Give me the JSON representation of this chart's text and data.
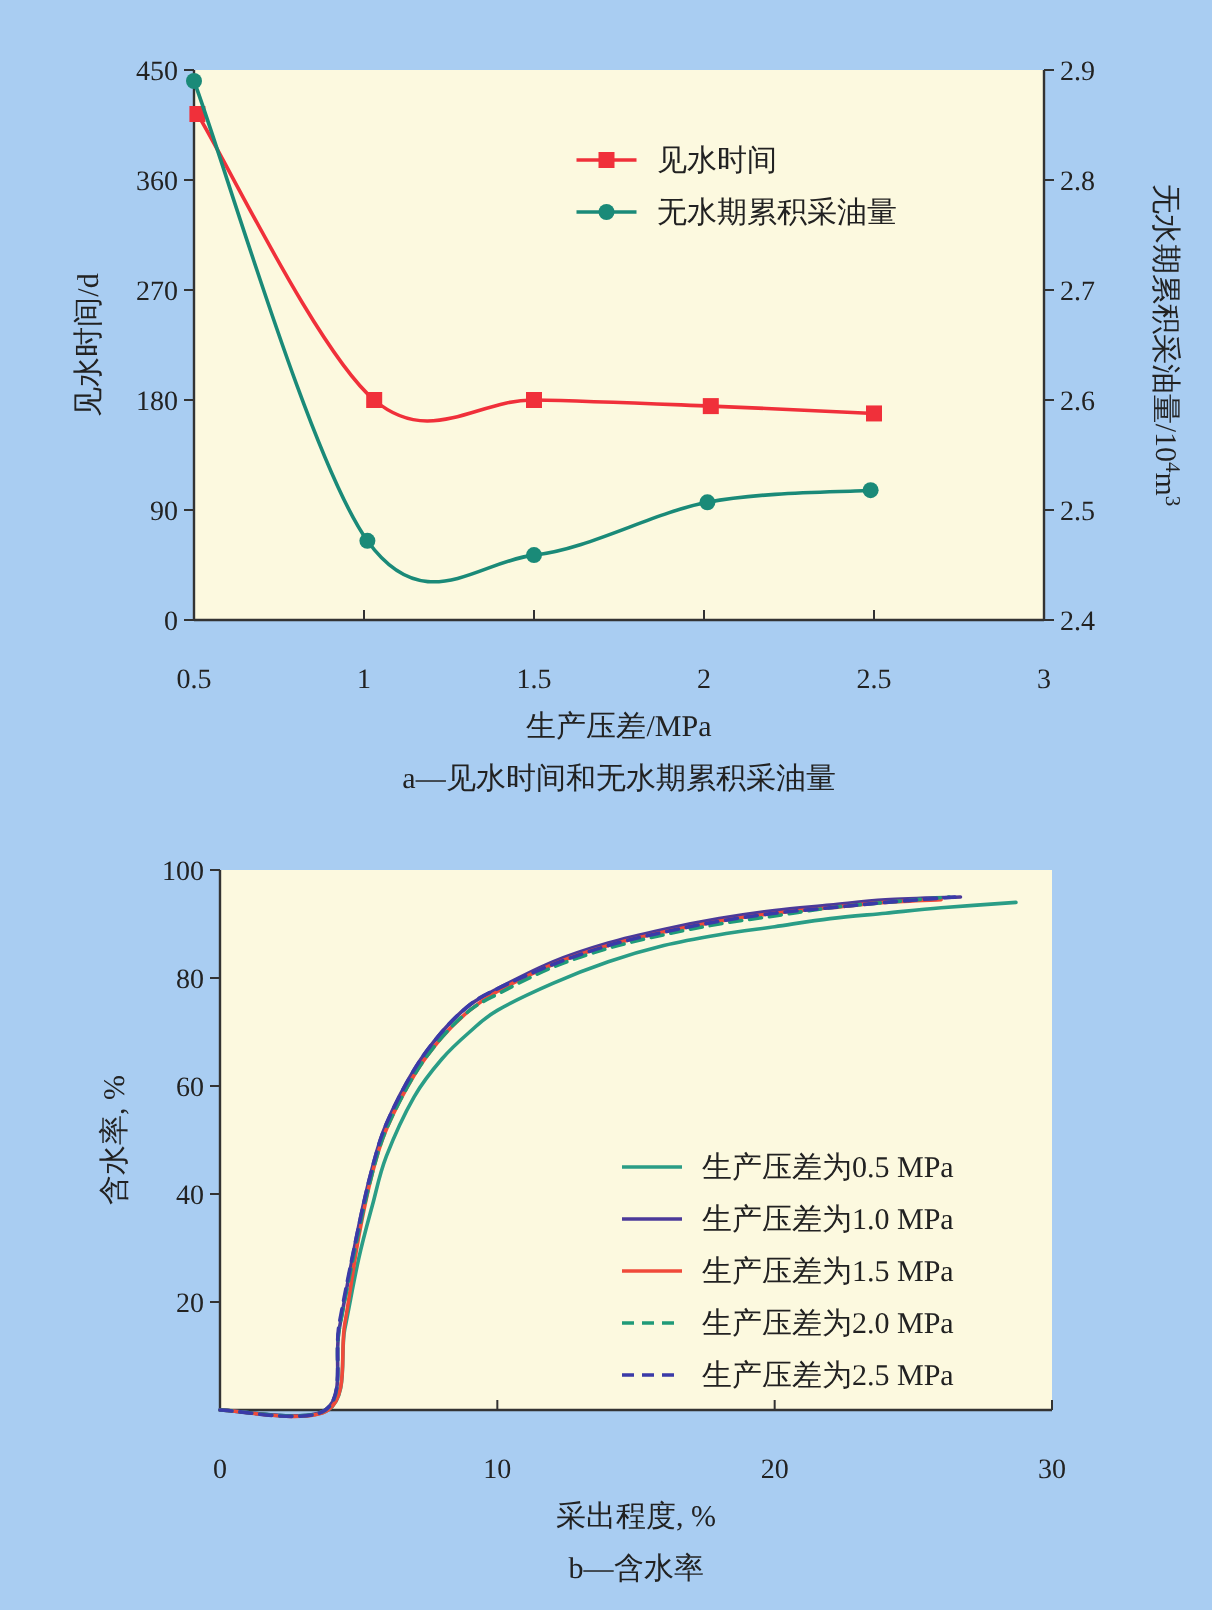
{
  "chart_data": [
    {
      "type": "line",
      "title": "a—见水时间和无水期累积采油量",
      "xlabel": "生产压差/MPa",
      "ylabel": "见水时间/d",
      "y2label": "无水期累积采油量/10$^{4}$m$^{3}$",
      "xlim": [
        0.5,
        3
      ],
      "xticks": [
        0.5,
        1,
        1.5,
        2,
        2.5,
        3
      ],
      "ylim": [
        0,
        450
      ],
      "yticks": [
        0,
        90,
        180,
        270,
        360,
        450
      ],
      "y2lim": [
        2.4,
        2.9
      ],
      "y2ticks": [
        2.4,
        2.5,
        2.6,
        2.7,
        2.8,
        2.9
      ],
      "grid": false,
      "legend": "top right",
      "series": [
        {
          "name": "见水时间",
          "color": "#f0303a",
          "marker": "square",
          "x": [
            0.51,
            1.03,
            1.5,
            2.02,
            2.5
          ],
          "values": [
            414,
            180,
            180,
            175,
            169
          ]
        },
        {
          "name": "无水期累积采油量",
          "color": "#1a8a78",
          "marker": "circle",
          "axis": "y2",
          "x": [
            0.5,
            1.01,
            1.5,
            2.01,
            2.49
          ],
          "values": [
            2.89,
            2.472,
            2.459,
            2.507,
            2.518
          ]
        }
      ]
    },
    {
      "type": "line",
      "title": "b—含水率",
      "xlabel": "采出程度, %",
      "ylabel": "含水率, %",
      "xlim": [
        0,
        30
      ],
      "xticks": [
        0,
        10,
        20,
        30
      ],
      "ylim": [
        0,
        100
      ],
      "yticks": [
        20,
        40,
        60,
        80,
        100
      ],
      "grid": false,
      "legend": "right",
      "series": [
        {
          "name": "生产压差为0.5 MPa",
          "color": "#2a9d86",
          "line_style": "solid",
          "x": [
            0,
            3.9,
            4.5,
            5,
            5.5,
            6,
            7,
            8,
            9,
            10,
            12,
            14,
            16,
            18,
            20,
            22,
            24,
            26,
            28.7
          ],
          "values": [
            0,
            0,
            15,
            28,
            38,
            47,
            58,
            65,
            70,
            74,
            79,
            83,
            86,
            88,
            89.5,
            91,
            92,
            93,
            94
          ]
        },
        {
          "name": "生产压差为1.0 MPa",
          "color": "#4b3a9a",
          "line_style": "solid",
          "x": [
            0,
            3.8,
            4.3,
            5,
            5.5,
            6,
            7,
            8,
            9,
            10,
            12,
            14,
            16,
            18,
            20,
            22,
            24,
            26.7
          ],
          "values": [
            0,
            0,
            15,
            34,
            45,
            53,
            63,
            70,
            75,
            78,
            83,
            86.5,
            89,
            91,
            92.5,
            93.5,
            94.5,
            95
          ]
        },
        {
          "name": "生产压差为1.5 MPa",
          "color": "#f04a3a",
          "line_style": "solid",
          "x": [
            0,
            3.9,
            4.5,
            5,
            5.5,
            6,
            7,
            8,
            9,
            10,
            12,
            14,
            16,
            18,
            20,
            22,
            24,
            26
          ],
          "values": [
            0,
            0,
            16,
            32,
            44,
            52,
            62,
            69,
            74,
            77.5,
            82.5,
            86,
            88.5,
            90.5,
            92,
            93,
            94,
            94.5
          ]
        },
        {
          "name": "生产压差为2.0 MPa",
          "color": "#1f9a78",
          "line_style": "dashed",
          "x": [
            0,
            3.8,
            4.3,
            5,
            5.5,
            6,
            7,
            8,
            9,
            10,
            12,
            14,
            16,
            18,
            20,
            22,
            24,
            26.3
          ],
          "values": [
            0,
            0,
            15,
            33,
            44,
            52,
            62,
            69,
            74,
            77,
            82,
            85.5,
            88,
            90,
            91.5,
            93,
            94,
            95
          ]
        },
        {
          "name": "生产压差为2.5 MPa",
          "color": "#3a3aa8",
          "line_style": "dashed",
          "x": [
            0,
            3.8,
            4.3,
            5,
            5.5,
            6,
            7,
            8,
            9,
            10,
            12,
            14,
            16,
            18,
            20,
            22,
            24,
            26.5
          ],
          "values": [
            0,
            0,
            16,
            34,
            45,
            53,
            63,
            70,
            75,
            78,
            82.5,
            86,
            88.5,
            90.5,
            92,
            93,
            94,
            95
          ]
        }
      ]
    }
  ]
}
